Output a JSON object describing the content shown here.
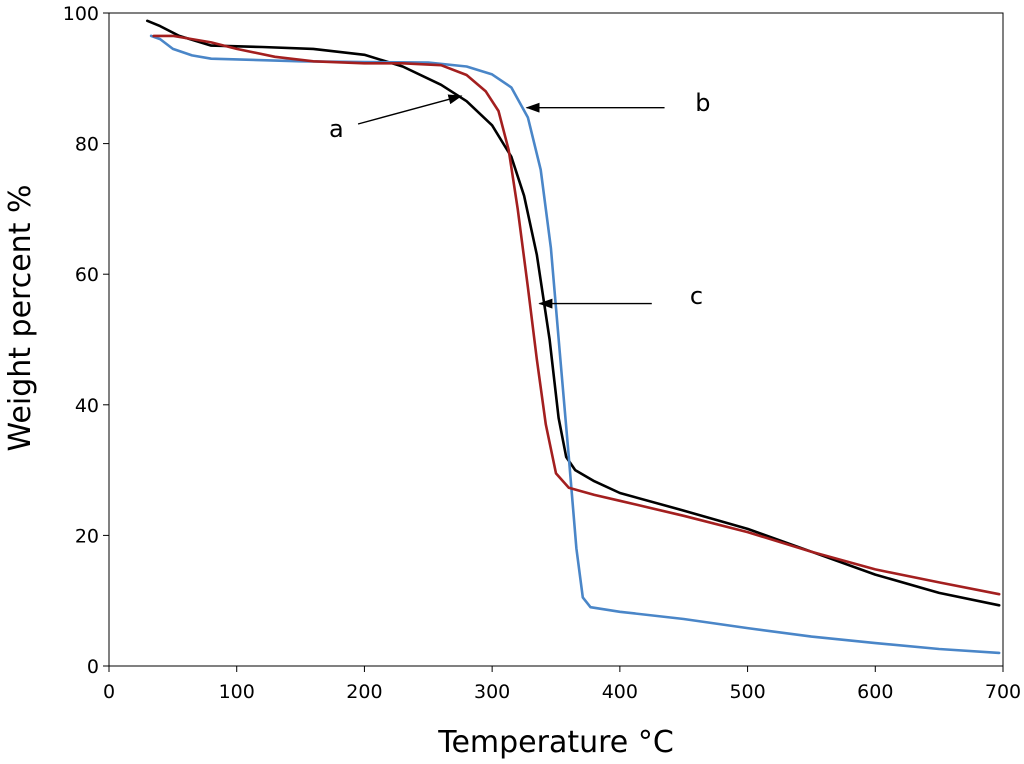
{
  "chart_data": {
    "type": "line",
    "title": "",
    "xlabel": "Temperature ",
    "xlabel_unit": "°C",
    "ylabel": "Weight percent %",
    "xlim": [
      0,
      700
    ],
    "ylim": [
      0,
      100
    ],
    "xticks": [
      0,
      100,
      200,
      300,
      400,
      500,
      600,
      700
    ],
    "yticks": [
      0,
      20,
      40,
      60,
      80,
      100
    ],
    "grid": false,
    "legend": "none",
    "series": [
      {
        "color": "#000000",
        "points": [
          [
            30,
            98.8
          ],
          [
            40,
            98
          ],
          [
            55,
            96.5
          ],
          [
            80,
            95
          ],
          [
            120,
            94.8
          ],
          [
            160,
            94.5
          ],
          [
            200,
            93.6
          ],
          [
            230,
            91.8
          ],
          [
            260,
            89
          ],
          [
            280,
            86.5
          ],
          [
            300,
            82.8
          ],
          [
            315,
            78
          ],
          [
            325,
            72
          ],
          [
            335,
            63
          ],
          [
            345,
            50
          ],
          [
            352,
            38
          ],
          [
            358,
            32
          ],
          [
            365,
            30
          ],
          [
            380,
            28.3
          ],
          [
            400,
            26.5
          ],
          [
            450,
            23.8
          ],
          [
            500,
            21
          ],
          [
            550,
            17.5
          ],
          [
            600,
            14
          ],
          [
            650,
            11.2
          ],
          [
            697,
            9.3
          ]
        ]
      },
      {
        "color": "#4a86c8",
        "points": [
          [
            33,
            96.5
          ],
          [
            40,
            96
          ],
          [
            50,
            94.5
          ],
          [
            65,
            93.5
          ],
          [
            80,
            93
          ],
          [
            150,
            92.6
          ],
          [
            200,
            92.5
          ],
          [
            250,
            92.4
          ],
          [
            280,
            91.8
          ],
          [
            300,
            90.6
          ],
          [
            315,
            88.6
          ],
          [
            328,
            84
          ],
          [
            338,
            76
          ],
          [
            346,
            64
          ],
          [
            353,
            48
          ],
          [
            360,
            32
          ],
          [
            366,
            18
          ],
          [
            371,
            10.5
          ],
          [
            377,
            9
          ],
          [
            400,
            8.3
          ],
          [
            450,
            7.2
          ],
          [
            500,
            5.8
          ],
          [
            550,
            4.5
          ],
          [
            600,
            3.5
          ],
          [
            650,
            2.6
          ],
          [
            697,
            2
          ]
        ]
      },
      {
        "color": "#a31f1f",
        "points": [
          [
            35,
            96.5
          ],
          [
            50,
            96.5
          ],
          [
            80,
            95.5
          ],
          [
            100,
            94.5
          ],
          [
            130,
            93.3
          ],
          [
            160,
            92.6
          ],
          [
            200,
            92.3
          ],
          [
            230,
            92.3
          ],
          [
            260,
            92
          ],
          [
            280,
            90.5
          ],
          [
            295,
            88
          ],
          [
            305,
            85
          ],
          [
            313,
            79
          ],
          [
            320,
            70
          ],
          [
            328,
            58
          ],
          [
            335,
            47
          ],
          [
            342,
            37
          ],
          [
            350,
            29.5
          ],
          [
            360,
            27.3
          ],
          [
            380,
            26.2
          ],
          [
            400,
            25.3
          ],
          [
            450,
            23
          ],
          [
            500,
            20.5
          ],
          [
            550,
            17.5
          ],
          [
            600,
            14.8
          ],
          [
            650,
            12.8
          ],
          [
            697,
            11
          ]
        ]
      }
    ],
    "annotations": [
      {
        "label": "a",
        "text_at": [
          178,
          81
        ],
        "arrow_from": [
          195,
          83
        ],
        "arrow_to": [
          276,
          87.3
        ]
      },
      {
        "label": "b",
        "text_at": [
          465,
          85
        ],
        "arrow_from": [
          435,
          85.5
        ],
        "arrow_to": [
          327,
          85.5
        ]
      },
      {
        "label": "c",
        "text_at": [
          460,
          55.4
        ],
        "arrow_from": [
          425,
          55.5
        ],
        "arrow_to": [
          337,
          55.5
        ]
      }
    ]
  }
}
